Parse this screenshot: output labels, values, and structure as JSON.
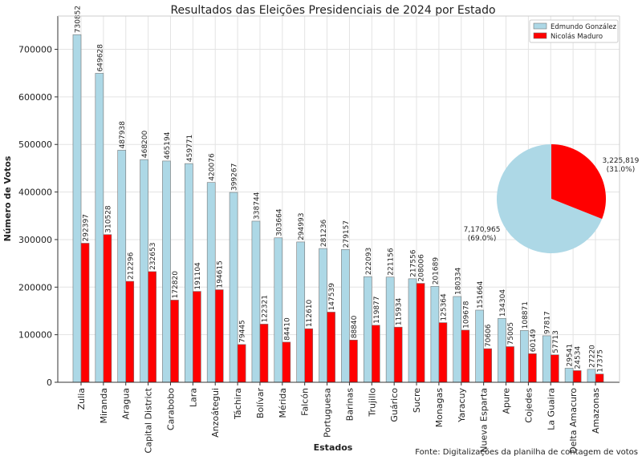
{
  "chart_data": [
    {
      "type": "bar",
      "title": "Resultados das Eleições Presidenciais de 2024 por Estado",
      "x_label": "Estados",
      "y_label": "Número de Votos",
      "source": "Fonte: Digitalizações da planilha de contagem de votos",
      "categories": [
        "Zulia",
        "Miranda",
        "Aragua",
        "Capital District",
        "Carabobo",
        "Lara",
        "Anzoátegui",
        "Táchira",
        "Bolívar",
        "Mérida",
        "Falcón",
        "Portuguesa",
        "Barinas",
        "Trujillo",
        "Guárico",
        "Sucre",
        "Monagas",
        "Yaracuy",
        "Nueva Esparta",
        "Apure",
        "Cojedes",
        "La Guaira",
        "Delta Amacuro",
        "Amazonas"
      ],
      "series": [
        {
          "name": "Edmundo González",
          "color": "#add8e6",
          "values": [
            730852,
            649628,
            487938,
            468200,
            465194,
            459771,
            420076,
            399267,
            338744,
            303664,
            294993,
            281236,
            279157,
            222093,
            221156,
            217556,
            201689,
            180334,
            151664,
            134304,
            108871,
            97817,
            29541,
            27220
          ]
        },
        {
          "name": "Nicolás Maduro",
          "color": "#ff0000",
          "values": [
            292397,
            310528,
            212296,
            232653,
            172820,
            191104,
            194615,
            79445,
            122321,
            84410,
            112610,
            147539,
            88840,
            119877,
            115934,
            208006,
            125364,
            109678,
            70606,
            75005,
            60149,
            57713,
            24534,
            17375
          ]
        }
      ],
      "ylim": [
        0,
        770000
      ],
      "yticks": [
        0,
        100000,
        200000,
        300000,
        400000,
        500000,
        600000,
        700000
      ],
      "grid": true,
      "legend": "upper right"
    },
    {
      "type": "pie",
      "values": [
        7170965,
        3225819
      ],
      "value_labels": [
        "7,170,965\n(69.0%)",
        "3,225,819\n(31.0%)"
      ],
      "colors": [
        "#add8e6",
        "#ff0000"
      ]
    }
  ]
}
